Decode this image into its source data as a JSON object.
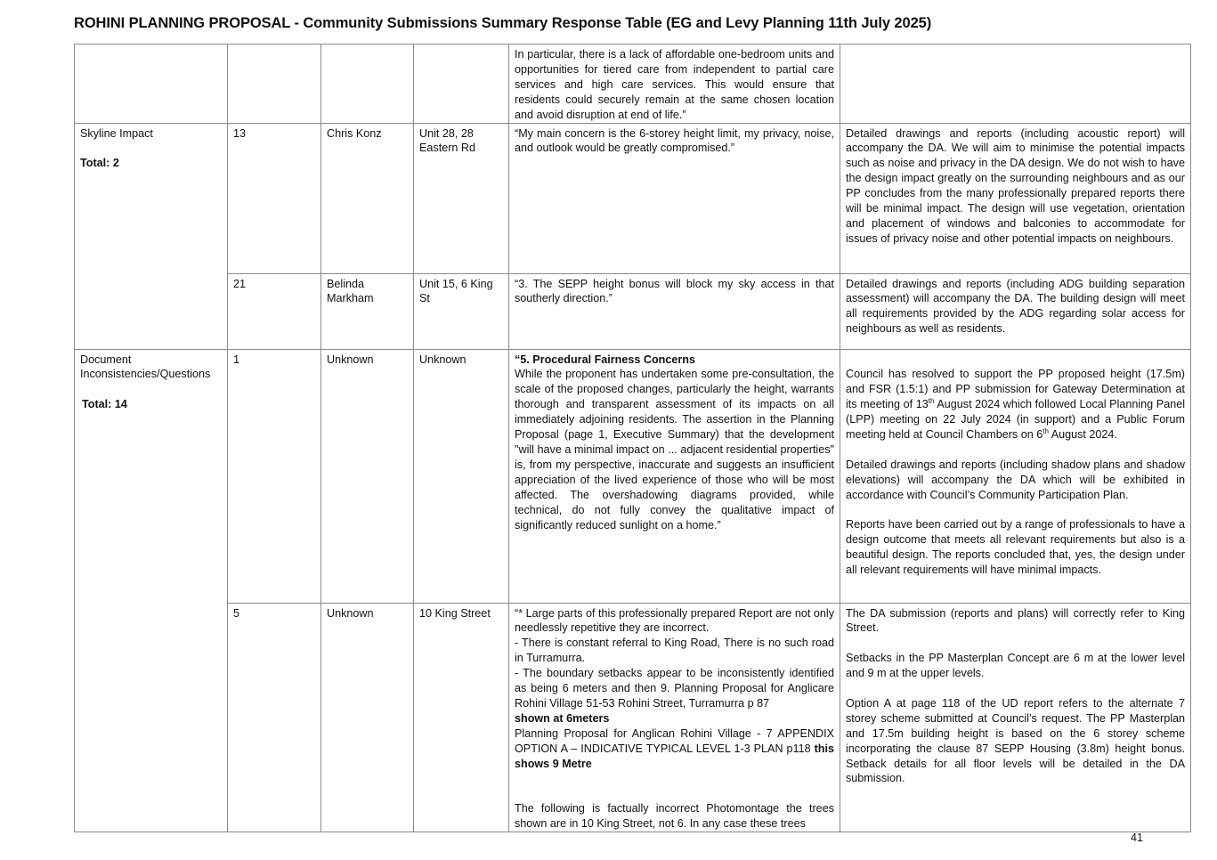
{
  "title": "ROHINI PLANNING PROPOSAL  - Community Submissions  Summary Response Table (EG and Levy Planning 11th July 2025)",
  "page_number": "41",
  "rows": [
    {
      "issue": "",
      "total": "",
      "no": "",
      "name": "",
      "address": "",
      "submission": [
        "In particular, there is a lack of affordable one-bedroom units and opportunities for tiered care from independent to partial care services and high care services. This would ensure that residents could securely remain at the same chosen location and avoid disruption at end of life.”"
      ],
      "response": []
    },
    {
      "issue": "Skyline Impact",
      "total": "Total: 2",
      "no": "13",
      "name": "Chris Konz",
      "address": "Unit 28, 28 Eastern Rd",
      "submission": [
        "“My main concern is the 6-storey height limit, my privacy, noise, and outlook would be greatly compromised.”"
      ],
      "response": [
        "Detailed drawings and reports (including acoustic report) will accompany the DA. We will aim to minimise the potential impacts such as noise and privacy in the DA design. We do not wish to have the design impact greatly on the surrounding neighbours and as our PP concludes from the many professionally prepared reports there will be minimal impact. The design will use vegetation, orientation and placement of windows and balconies to accommodate for issues of privacy noise and other potential impacts on neighbours."
      ]
    },
    {
      "no": "21",
      "name": "Belinda Markham",
      "address": "Unit 15, 6 King St",
      "submission": [
        "“3. The SEPP height bonus will block my sky access in that southerly direction.”"
      ],
      "response": [
        "Detailed drawings and reports (including ADG building separation assessment) will accompany the DA. The building design will meet all requirements provided by the ADG regarding solar access for neighbours as well as residents."
      ]
    },
    {
      "issue": "Document Inconsistencies/Questions",
      "total": "Total:  14",
      "no": "1",
      "name": "Unknown",
      "address": "Unknown",
      "submission_heading": "“5. Procedural Fairness Concerns",
      "submission": [
        "While the proponent has undertaken some pre-consultation, the scale of the proposed changes, particularly the height, warrants thorough and transparent assessment of its impacts on all immediately adjoining residents. The assertion in the Planning Proposal (page 1, Executive Summary) that the development \"will have a minimal impact on ... adjacent residential properties\" is, from my perspective, inaccurate and suggests an insufficient appreciation of the lived experience of those who will be most affected. The overshadowing diagrams provided, while technical, do not fully convey the qualitative impact of significantly reduced sunlight on a home.”"
      ],
      "response": [
        "Council has resolved to support the PP proposed height (17.5m) and FSR (1.5:1) and PP submission for Gateway Determination at its meeting of 13th August 2024 which followed Local Planning Panel (LPP) meeting on 22 July 2024 (in support) and a Public Forum meeting held at Council Chambers on 6th August 2024.",
        "Detailed drawings and reports (including shadow plans and shadow elevations) will accompany the DA which will be exhibited in accordance with Council’s Community Participation Plan.",
        "Reports have been carried out by a range of professionals to have a design outcome that meets all relevant requirements but also is a beautiful design. The reports concluded that, yes, the design under all relevant requirements will have minimal impacts."
      ]
    },
    {
      "no": "5",
      "name": "Unknown",
      "address": "10 King Street",
      "submission": [
        "“* Large parts of this professionally prepared Report are not only needlessly repetitive they are incorrect.",
        "- There is constant referral to King Road, There is no such road in Turramurra.",
        "- The boundary setbacks appear to be inconsistently identified as being 6 meters and then 9. Planning Proposal for Anglicare Rohini Village 51-53 Rohini Street, Turramurra p 87",
        "shown at 6meters",
        "Planning Proposal for Anglican Rohini Village - 7 APPENDIX OPTION A – INDICATIVE TYPICAL LEVEL 1-3 PLAN p118",
        "this shows 9 Metre",
        "The following is factually incorrect Photomontage the trees shown are in 10 King Street, not 6. In any case these trees"
      ],
      "response": [
        "The DA submission (reports and plans) will correctly refer to King Street.",
        "Setbacks in the PP Masterplan Concept are 6 m at the lower level and 9 m at the upper levels.",
        "Option A at page 118 of the UD report refers to the alternate 7 storey scheme submitted at Council’s request.  The PP Masterplan and 17.5m building height is based on the 6 storey scheme incorporating the clause 87 SEPP Housing (3.8m) height bonus. Setback details for all floor levels will be detailed in the DA submission."
      ]
    }
  ]
}
